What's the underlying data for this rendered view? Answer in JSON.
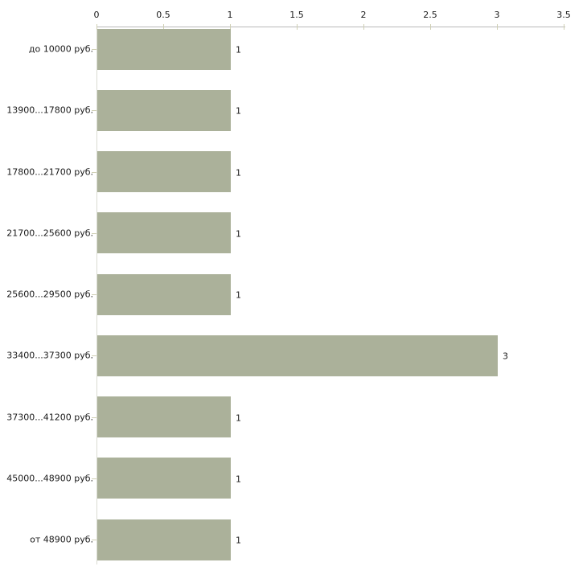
{
  "chart_data": {
    "type": "bar",
    "orientation": "horizontal",
    "title": "",
    "xlabel": "",
    "ylabel": "",
    "categories": [
      "до 10000 руб.",
      "13900...17800 руб.",
      "17800...21700 руб.",
      "21700...25600 руб.",
      "25600...29500 руб.",
      "33400...37300 руб.",
      "37300...41200 руб.",
      "45000...48900 руб.",
      "от 48900 руб."
    ],
    "values": [
      1,
      1,
      1,
      1,
      1,
      3,
      1,
      1,
      1
    ],
    "value_labels": [
      "1",
      "1",
      "1",
      "1",
      "1",
      "3",
      "1",
      "1",
      "1"
    ],
    "x_axis": {
      "position": "top",
      "min": 0,
      "max": 3.5,
      "tick_values": [
        0,
        0.5,
        1,
        1.5,
        2,
        2.5,
        3,
        3.5
      ],
      "tick_labels": [
        "0",
        "0.5",
        "1",
        "1.5",
        "2",
        "2.5",
        "3",
        "3.5"
      ]
    },
    "grid": false,
    "legend": false,
    "colors": {
      "bar_fill": "#abb19a",
      "x_axis_line": "#b9b9b9",
      "y_axis_line": "#dadcd2",
      "tick_mark": "#cfcfb4",
      "text": "#1a1a1a"
    }
  }
}
